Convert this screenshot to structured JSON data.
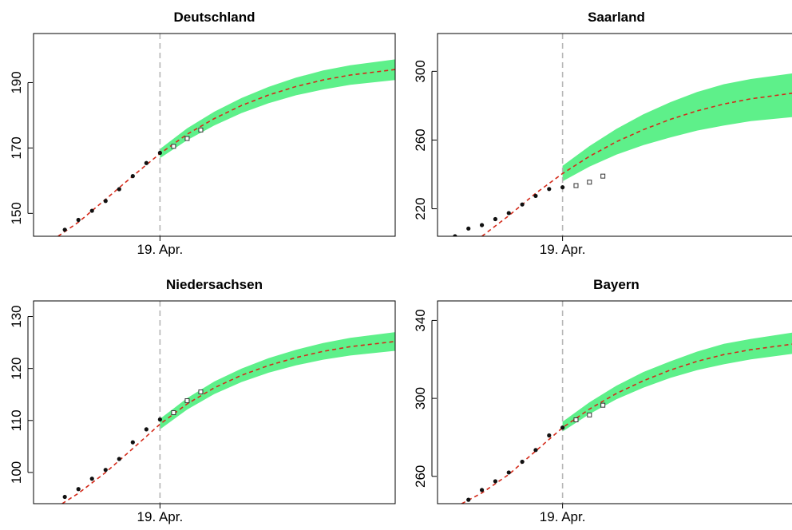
{
  "colors": {
    "band": "#5ef08a",
    "fit": "#d42a1a",
    "observed": "#111111",
    "predicted_stroke": "#333333",
    "marker_line": "#b5b5b5"
  },
  "chart_data": [
    {
      "type": "line",
      "title": "Deutschland",
      "x_tick_labels": [
        {
          "x": 0,
          "label": "19. Apr."
        }
      ],
      "y_ticks": [
        150,
        170,
        190
      ],
      "ylim": [
        143,
        205
      ],
      "xlim": [
        -9.3,
        17.3
      ],
      "vertical_marker_x": 0,
      "observed": [
        {
          "x": -7,
          "y": 145
        },
        {
          "x": -6,
          "y": 148
        },
        {
          "x": -5,
          "y": 150.8
        },
        {
          "x": -4,
          "y": 153.8
        },
        {
          "x": -3,
          "y": 157.4
        },
        {
          "x": -2,
          "y": 161.4
        },
        {
          "x": -1,
          "y": 165.4
        },
        {
          "x": 0,
          "y": 168.5
        }
      ],
      "predicted": [
        {
          "x": 1,
          "y": 170.5
        },
        {
          "x": 2,
          "y": 172.9
        },
        {
          "x": 3,
          "y": 175.5
        }
      ],
      "fit_curve": [
        {
          "x": -7.5,
          "y": 143
        },
        {
          "x": -6,
          "y": 147.3
        },
        {
          "x": -4,
          "y": 154.3
        },
        {
          "x": -2,
          "y": 161.4
        },
        {
          "x": 0,
          "y": 168.3
        },
        {
          "x": 2,
          "y": 174.2
        },
        {
          "x": 4,
          "y": 179
        },
        {
          "x": 6,
          "y": 183
        },
        {
          "x": 8,
          "y": 186.2
        },
        {
          "x": 10,
          "y": 188.8
        },
        {
          "x": 12,
          "y": 190.8
        },
        {
          "x": 14,
          "y": 192.3
        },
        {
          "x": 17.3,
          "y": 194
        }
      ],
      "band": [
        {
          "x": 0,
          "lo": 166.9,
          "hi": 169.7
        },
        {
          "x": 2,
          "lo": 172.4,
          "hi": 176
        },
        {
          "x": 4,
          "lo": 176.9,
          "hi": 181.1
        },
        {
          "x": 6,
          "lo": 180.7,
          "hi": 185.3
        },
        {
          "x": 8,
          "lo": 183.7,
          "hi": 188.7
        },
        {
          "x": 10,
          "lo": 186.1,
          "hi": 191.5
        },
        {
          "x": 12,
          "lo": 187.9,
          "hi": 193.7
        },
        {
          "x": 14,
          "lo": 189.3,
          "hi": 195.3
        },
        {
          "x": 17.3,
          "lo": 190.8,
          "hi": 197.1
        }
      ]
    },
    {
      "type": "line",
      "title": "Saarland",
      "x_tick_labels": [
        {
          "x": 0,
          "label": "19. Apr."
        }
      ],
      "y_ticks": [
        220,
        260,
        300
      ],
      "ylim": [
        204,
        322
      ],
      "xlim": [
        -9.3,
        17.3
      ],
      "vertical_marker_x": 0,
      "observed": [
        {
          "x": -8,
          "y": 204
        },
        {
          "x": -7,
          "y": 208.5
        },
        {
          "x": -6,
          "y": 210.5
        },
        {
          "x": -5,
          "y": 214
        },
        {
          "x": -4,
          "y": 217.5
        },
        {
          "x": -3,
          "y": 222.5
        },
        {
          "x": -2,
          "y": 227.5
        },
        {
          "x": -1,
          "y": 231.5
        },
        {
          "x": 0,
          "y": 232.5
        }
      ],
      "predicted": [
        {
          "x": 1,
          "y": 233.5
        },
        {
          "x": 2,
          "y": 235.5
        },
        {
          "x": 3,
          "y": 239
        }
      ],
      "fit_curve": [
        {
          "x": -6,
          "y": 204
        },
        {
          "x": -4,
          "y": 216
        },
        {
          "x": -2,
          "y": 229
        },
        {
          "x": 0,
          "y": 240.5
        },
        {
          "x": 2,
          "y": 250.5
        },
        {
          "x": 4,
          "y": 259
        },
        {
          "x": 6,
          "y": 266
        },
        {
          "x": 8,
          "y": 272
        },
        {
          "x": 10,
          "y": 277
        },
        {
          "x": 12,
          "y": 281
        },
        {
          "x": 14,
          "y": 284
        },
        {
          "x": 17.3,
          "y": 287.5
        }
      ],
      "band": [
        {
          "x": 0,
          "lo": 236,
          "hi": 245
        },
        {
          "x": 2,
          "lo": 244.5,
          "hi": 256.5
        },
        {
          "x": 4,
          "lo": 251.5,
          "hi": 266.5
        },
        {
          "x": 6,
          "lo": 257,
          "hi": 275
        },
        {
          "x": 8,
          "lo": 261.5,
          "hi": 282
        },
        {
          "x": 10,
          "lo": 265.5,
          "hi": 288
        },
        {
          "x": 12,
          "lo": 268.5,
          "hi": 292.5
        },
        {
          "x": 14,
          "lo": 271,
          "hi": 295.5
        },
        {
          "x": 17.3,
          "lo": 273.5,
          "hi": 299
        }
      ]
    },
    {
      "type": "line",
      "title": "Niedersachsen",
      "x_tick_labels": [
        {
          "x": 0,
          "label": "19. Apr."
        }
      ],
      "y_ticks": [
        100,
        110,
        120,
        130
      ],
      "ylim": [
        94,
        133
      ],
      "xlim": [
        -9.3,
        17.3
      ],
      "vertical_marker_x": 0,
      "observed": [
        {
          "x": -7,
          "y": 95.3
        },
        {
          "x": -6,
          "y": 96.8
        },
        {
          "x": -5,
          "y": 98.8
        },
        {
          "x": -4,
          "y": 100.5
        },
        {
          "x": -3,
          "y": 102.6
        },
        {
          "x": -2,
          "y": 105.8
        },
        {
          "x": -1,
          "y": 108.3
        },
        {
          "x": 0,
          "y": 110.2
        }
      ],
      "predicted": [
        {
          "x": 1,
          "y": 111.5
        },
        {
          "x": 2,
          "y": 113.8
        },
        {
          "x": 3,
          "y": 115.5
        }
      ],
      "fit_curve": [
        {
          "x": -7.2,
          "y": 94
        },
        {
          "x": -6,
          "y": 96
        },
        {
          "x": -4,
          "y": 100
        },
        {
          "x": -2,
          "y": 104.6
        },
        {
          "x": 0,
          "y": 109.3
        },
        {
          "x": 2,
          "y": 113.2
        },
        {
          "x": 4,
          "y": 116.3
        },
        {
          "x": 6,
          "y": 118.7
        },
        {
          "x": 8,
          "y": 120.6
        },
        {
          "x": 10,
          "y": 122.1
        },
        {
          "x": 12,
          "y": 123.3
        },
        {
          "x": 14,
          "y": 124.2
        },
        {
          "x": 17.3,
          "y": 125.2
        }
      ],
      "band": [
        {
          "x": 0,
          "lo": 108.3,
          "hi": 110.3
        },
        {
          "x": 2,
          "lo": 112.1,
          "hi": 114.3
        },
        {
          "x": 4,
          "lo": 115.1,
          "hi": 117.5
        },
        {
          "x": 6,
          "lo": 117.4,
          "hi": 120
        },
        {
          "x": 8,
          "lo": 119.2,
          "hi": 122
        },
        {
          "x": 10,
          "lo": 120.6,
          "hi": 123.6
        },
        {
          "x": 12,
          "lo": 121.7,
          "hi": 124.9
        },
        {
          "x": 14,
          "lo": 122.5,
          "hi": 125.9
        },
        {
          "x": 17.3,
          "lo": 123.4,
          "hi": 127
        }
      ]
    },
    {
      "type": "line",
      "title": "Bayern",
      "x_tick_labels": [
        {
          "x": 0,
          "label": "19. Apr."
        }
      ],
      "y_ticks": [
        260,
        300,
        340
      ],
      "ylim": [
        246,
        350
      ],
      "xlim": [
        -9.3,
        17.3
      ],
      "vertical_marker_x": 0,
      "observed": [
        {
          "x": -7,
          "y": 248
        },
        {
          "x": -6,
          "y": 253
        },
        {
          "x": -5,
          "y": 257.5
        },
        {
          "x": -4,
          "y": 262
        },
        {
          "x": -3,
          "y": 267.5
        },
        {
          "x": -2,
          "y": 273.5
        },
        {
          "x": -1,
          "y": 281
        },
        {
          "x": 0,
          "y": 285
        }
      ],
      "predicted": [
        {
          "x": 1,
          "y": 289
        },
        {
          "x": 2,
          "y": 291.5
        },
        {
          "x": 3,
          "y": 296.5
        }
      ],
      "fit_curve": [
        {
          "x": -7.5,
          "y": 246
        },
        {
          "x": -6,
          "y": 251.5
        },
        {
          "x": -4,
          "y": 261
        },
        {
          "x": -2,
          "y": 273
        },
        {
          "x": 0,
          "y": 285
        },
        {
          "x": 2,
          "y": 294.5
        },
        {
          "x": 4,
          "y": 302.5
        },
        {
          "x": 6,
          "y": 309
        },
        {
          "x": 8,
          "y": 314.5
        },
        {
          "x": 10,
          "y": 319
        },
        {
          "x": 12,
          "y": 322.5
        },
        {
          "x": 14,
          "y": 325
        },
        {
          "x": 17.3,
          "y": 328
        }
      ],
      "band": [
        {
          "x": 0,
          "lo": 283,
          "hi": 288
        },
        {
          "x": 2,
          "lo": 292,
          "hi": 298
        },
        {
          "x": 4,
          "lo": 299.5,
          "hi": 306.5
        },
        {
          "x": 6,
          "lo": 305.5,
          "hi": 313.5
        },
        {
          "x": 8,
          "lo": 310.5,
          "hi": 319
        },
        {
          "x": 10,
          "lo": 314.5,
          "hi": 324
        },
        {
          "x": 12,
          "lo": 317.5,
          "hi": 328
        },
        {
          "x": 14,
          "lo": 320,
          "hi": 330.5
        },
        {
          "x": 17.3,
          "lo": 323,
          "hi": 334
        }
      ]
    }
  ]
}
